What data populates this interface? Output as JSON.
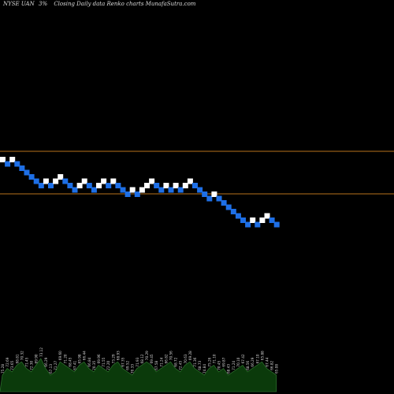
{
  "header": {
    "ticker": "NYSE UAN",
    "pct": "3%",
    "caption": "Closing Daily data Renko charts MunafaSutra.com"
  },
  "colors": {
    "background": "#000000",
    "up_brick": "#ffffff",
    "down_brick": "#1e6fe6",
    "level_line": "#b8721c",
    "volume_fill": "#0b3a0b",
    "volume_line": "#2c6b2c",
    "label_text": "#d8d8d8"
  },
  "chart_data": {
    "type": "renko",
    "x_axis": "bricks",
    "y_axis": "close",
    "levels": [
      3.5,
      0
    ],
    "bricks": [
      {
        "dir": "up",
        "level": 0
      },
      {
        "dir": "down",
        "level": -1
      },
      {
        "dir": "up",
        "level": 0
      },
      {
        "dir": "down",
        "level": -1
      },
      {
        "dir": "down",
        "level": -2
      },
      {
        "dir": "down",
        "level": -3
      },
      {
        "dir": "down",
        "level": -4
      },
      {
        "dir": "down",
        "level": -5
      },
      {
        "dir": "down",
        "level": -6
      },
      {
        "dir": "up",
        "level": -5
      },
      {
        "dir": "down",
        "level": -6
      },
      {
        "dir": "up",
        "level": -5
      },
      {
        "dir": "up",
        "level": -4
      },
      {
        "dir": "down",
        "level": -5
      },
      {
        "dir": "down",
        "level": -6
      },
      {
        "dir": "down",
        "level": -7
      },
      {
        "dir": "up",
        "level": -6
      },
      {
        "dir": "up",
        "level": -5
      },
      {
        "dir": "down",
        "level": -6
      },
      {
        "dir": "down",
        "level": -7
      },
      {
        "dir": "up",
        "level": -6
      },
      {
        "dir": "up",
        "level": -5
      },
      {
        "dir": "down",
        "level": -6
      },
      {
        "dir": "up",
        "level": -5
      },
      {
        "dir": "down",
        "level": -6
      },
      {
        "dir": "down",
        "level": -7
      },
      {
        "dir": "down",
        "level": -8
      },
      {
        "dir": "up",
        "level": -7
      },
      {
        "dir": "down",
        "level": -8
      },
      {
        "dir": "up",
        "level": -7
      },
      {
        "dir": "up",
        "level": -6
      },
      {
        "dir": "up",
        "level": -5
      },
      {
        "dir": "down",
        "level": -6
      },
      {
        "dir": "down",
        "level": -7
      },
      {
        "dir": "up",
        "level": -6
      },
      {
        "dir": "down",
        "level": -7
      },
      {
        "dir": "up",
        "level": -6
      },
      {
        "dir": "down",
        "level": -7
      },
      {
        "dir": "up",
        "level": -6
      },
      {
        "dir": "up",
        "level": -5
      },
      {
        "dir": "down",
        "level": -6
      },
      {
        "dir": "down",
        "level": -7
      },
      {
        "dir": "down",
        "level": -8
      },
      {
        "dir": "down",
        "level": -9
      },
      {
        "dir": "up",
        "level": -8
      },
      {
        "dir": "down",
        "level": -9
      },
      {
        "dir": "down",
        "level": -10
      },
      {
        "dir": "down",
        "level": -11
      },
      {
        "dir": "down",
        "level": -12
      },
      {
        "dir": "down",
        "level": -13
      },
      {
        "dir": "down",
        "level": -14
      },
      {
        "dir": "down",
        "level": -15
      },
      {
        "dir": "up",
        "level": -14
      },
      {
        "dir": "down",
        "level": -15
      },
      {
        "dir": "up",
        "level": -14
      },
      {
        "dir": "up",
        "level": -13
      },
      {
        "dir": "down",
        "level": -14
      },
      {
        "dir": "down",
        "level": -15
      }
    ],
    "volume": [
      5,
      7,
      6,
      8,
      9,
      7,
      6,
      8,
      10,
      7,
      5,
      6,
      9,
      8,
      7,
      6,
      8,
      9,
      7,
      6,
      8,
      7,
      6,
      8,
      9,
      7,
      6,
      5,
      7,
      8,
      9,
      8,
      6,
      7,
      8,
      9,
      7,
      6,
      8,
      9,
      7,
      6,
      5,
      7,
      8,
      6,
      7,
      5,
      6,
      7,
      8,
      6,
      7,
      8,
      9,
      7,
      6,
      5
    ],
    "volume_labels": [
      "75.28",
      "72.69",
      "73.65",
      "68.81",
      "70.32",
      "71.45",
      "72.30",
      "69.90",
      "73.12",
      "66.29",
      "67.13",
      "71.27",
      "69.60",
      "71.20",
      "68.45",
      "67.41",
      "65.98",
      "66.44",
      "66.84",
      "70.35",
      "69.96",
      "71.55",
      "72.20",
      "73.29",
      "68.93",
      "67.35",
      "69.52",
      "70.33",
      "71.93",
      "68.12",
      "70.29",
      "69.45",
      "67.58",
      "71.24",
      "66.82",
      "70.56",
      "68.72",
      "72.45",
      "70.63",
      "69.28",
      "71.36",
      "68.73",
      "74.84",
      "75.26",
      "71.10",
      "70.45",
      "69.87",
      "68.43",
      "71.24",
      "70.10",
      "67.42",
      "68.56",
      "66.29",
      "67.10",
      "65.88",
      "67.44",
      "66.82",
      "65.08"
    ]
  }
}
